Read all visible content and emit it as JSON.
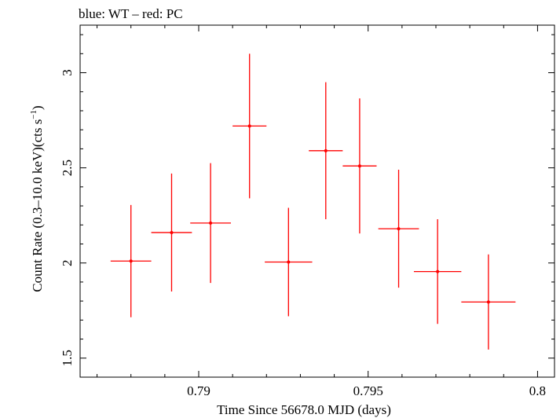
{
  "chart_data": {
    "type": "scatter",
    "title": "blue: WT – red: PC",
    "xlabel": "Time Since 56678.0 MJD (days)",
    "ylabel": "Count Rate (0.3–10.0 keV)(cts s",
    "ylabel_sup": "−1",
    "ylabel_close": ")",
    "xlim": [
      0.7865,
      0.8005
    ],
    "ylim": [
      1.4,
      3.25
    ],
    "x_ticks": [
      {
        "value": 0.79,
        "label": "0.79"
      },
      {
        "value": 0.795,
        "label": "0.795"
      },
      {
        "value": 0.8,
        "label": "0.8"
      }
    ],
    "y_ticks": [
      {
        "value": 1.5,
        "label": "1.5"
      },
      {
        "value": 2,
        "label": "2"
      },
      {
        "value": 2.5,
        "label": "2.5"
      },
      {
        "value": 3,
        "label": "3"
      }
    ],
    "series": [
      {
        "name": "PC",
        "color": "#ff0000",
        "points": [
          {
            "x": 0.788,
            "xerr_lo": 0.0006,
            "xerr_hi": 0.0006,
            "y": 2.01,
            "yerr_lo": 0.295,
            "yerr_hi": 0.295
          },
          {
            "x": 0.7892,
            "xerr_lo": 0.0006,
            "xerr_hi": 0.0006,
            "y": 2.16,
            "yerr_lo": 0.31,
            "yerr_hi": 0.31
          },
          {
            "x": 0.79035,
            "xerr_lo": 0.0006,
            "xerr_hi": 0.0006,
            "y": 2.21,
            "yerr_lo": 0.315,
            "yerr_hi": 0.315
          },
          {
            "x": 0.7915,
            "xerr_lo": 0.0005,
            "xerr_hi": 0.0005,
            "y": 2.72,
            "yerr_lo": 0.38,
            "yerr_hi": 0.38
          },
          {
            "x": 0.79265,
            "xerr_lo": 0.0007,
            "xerr_hi": 0.0007,
            "y": 2.005,
            "yerr_lo": 0.285,
            "yerr_hi": 0.285
          },
          {
            "x": 0.79375,
            "xerr_lo": 0.0005,
            "xerr_hi": 0.0005,
            "y": 2.59,
            "yerr_lo": 0.36,
            "yerr_hi": 0.36
          },
          {
            "x": 0.79475,
            "xerr_lo": 0.0005,
            "xerr_hi": 0.0005,
            "y": 2.51,
            "yerr_lo": 0.355,
            "yerr_hi": 0.355
          },
          {
            "x": 0.7959,
            "xerr_lo": 0.0006,
            "xerr_hi": 0.0006,
            "y": 2.18,
            "yerr_lo": 0.31,
            "yerr_hi": 0.31
          },
          {
            "x": 0.79705,
            "xerr_lo": 0.0007,
            "xerr_hi": 0.0007,
            "y": 1.955,
            "yerr_lo": 0.275,
            "yerr_hi": 0.275
          },
          {
            "x": 0.79855,
            "xerr_lo": 0.0008,
            "xerr_hi": 0.0008,
            "y": 1.795,
            "yerr_lo": 0.25,
            "yerr_hi": 0.25
          }
        ]
      }
    ]
  }
}
